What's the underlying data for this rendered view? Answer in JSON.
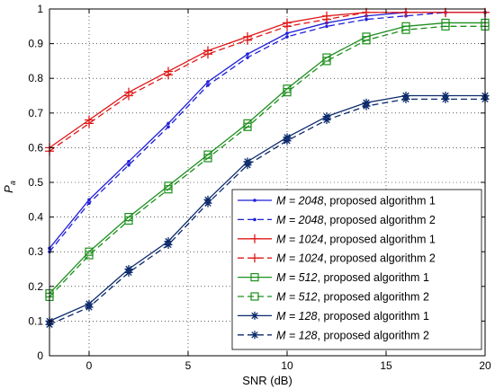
{
  "chart_data": {
    "type": "line",
    "xlabel": "SNR (dB)",
    "ylabel_main": "P",
    "ylabel_sub": "a",
    "xlim": [
      -2,
      20
    ],
    "ylim": [
      0,
      1
    ],
    "xticks": [
      0,
      5,
      10,
      15,
      20
    ],
    "yticks": [
      0,
      0.1,
      0.2,
      0.3,
      0.4,
      0.5,
      0.6,
      0.7,
      0.8,
      0.9,
      1
    ],
    "grid": "dotted",
    "legend_position": "bottom-right",
    "x": [
      -2,
      0,
      2,
      4,
      6,
      8,
      10,
      12,
      14,
      16,
      18,
      20
    ],
    "series": [
      {
        "m_label": "M = 2048",
        "suffix": ", proposed algorithm 1",
        "color": "#1f1fd8",
        "dash": "solid",
        "marker": "dot",
        "values": [
          0.31,
          0.45,
          0.56,
          0.67,
          0.79,
          0.87,
          0.93,
          0.96,
          0.98,
          0.99,
          0.99,
          0.99
        ]
      },
      {
        "m_label": "M = 2048",
        "suffix": ", proposed algorithm 2",
        "color": "#1f1fd8",
        "dash": "dashed",
        "marker": "dot",
        "values": [
          0.3,
          0.44,
          0.55,
          0.66,
          0.78,
          0.86,
          0.92,
          0.95,
          0.97,
          0.98,
          0.99,
          0.99
        ]
      },
      {
        "m_label": "M = 1024",
        "suffix": ", proposed algorithm 1",
        "color": "#e01818",
        "dash": "solid",
        "marker": "plus",
        "values": [
          0.6,
          0.68,
          0.76,
          0.82,
          0.88,
          0.92,
          0.96,
          0.98,
          0.99,
          0.99,
          0.99,
          0.99
        ]
      },
      {
        "m_label": "M = 1024",
        "suffix": ", proposed algorithm 2",
        "color": "#e01818",
        "dash": "dashed",
        "marker": "plus",
        "values": [
          0.59,
          0.67,
          0.75,
          0.81,
          0.87,
          0.91,
          0.95,
          0.97,
          0.99,
          0.99,
          0.99,
          0.99
        ]
      },
      {
        "m_label": "M = 512",
        "suffix": ", proposed algorithm 1",
        "color": "#1d8f1d",
        "dash": "solid",
        "marker": "square",
        "values": [
          0.18,
          0.3,
          0.4,
          0.49,
          0.58,
          0.67,
          0.77,
          0.86,
          0.92,
          0.95,
          0.96,
          0.96
        ]
      },
      {
        "m_label": "M = 512",
        "suffix": ", proposed algorithm 2",
        "color": "#1d8f1d",
        "dash": "dashed",
        "marker": "square",
        "values": [
          0.17,
          0.29,
          0.39,
          0.48,
          0.57,
          0.66,
          0.76,
          0.85,
          0.91,
          0.94,
          0.95,
          0.95
        ]
      },
      {
        "m_label": "M = 128",
        "suffix": ", proposed algorithm 1",
        "color": "#0b2a6b",
        "dash": "solid",
        "marker": "star",
        "values": [
          0.1,
          0.15,
          0.25,
          0.33,
          0.45,
          0.56,
          0.63,
          0.69,
          0.73,
          0.75,
          0.75,
          0.75
        ]
      },
      {
        "m_label": "M = 128",
        "suffix": ", proposed algorithm 2",
        "color": "#0b2a6b",
        "dash": "dashed",
        "marker": "star",
        "values": [
          0.09,
          0.14,
          0.24,
          0.32,
          0.44,
          0.55,
          0.62,
          0.68,
          0.72,
          0.74,
          0.74,
          0.74
        ]
      }
    ]
  }
}
